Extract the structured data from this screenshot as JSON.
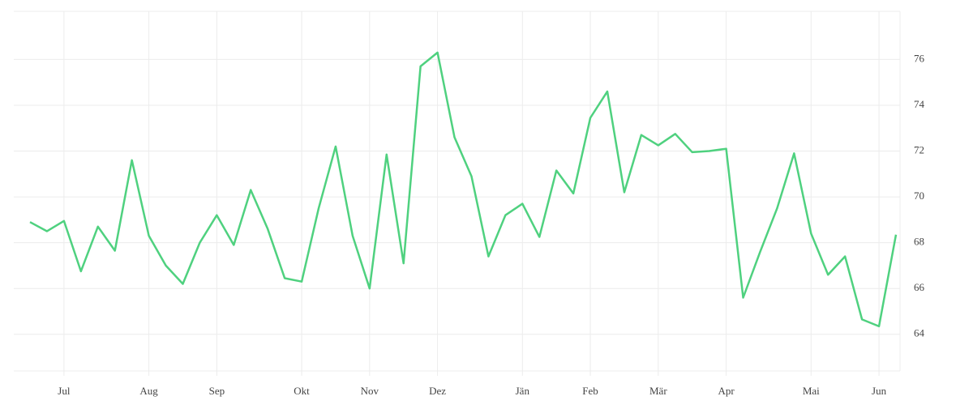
{
  "chart_data": {
    "type": "line",
    "categories": [
      null,
      null,
      "Jul",
      null,
      null,
      null,
      null,
      "Aug",
      null,
      null,
      null,
      "Sep",
      null,
      null,
      null,
      null,
      "Okt",
      null,
      null,
      null,
      "Nov",
      null,
      null,
      null,
      "Dez",
      null,
      null,
      null,
      null,
      "Jän",
      null,
      null,
      null,
      "Feb",
      null,
      null,
      null,
      "Mär",
      null,
      null,
      null,
      "Apr",
      null,
      null,
      null,
      null,
      "Mai",
      null,
      null,
      null,
      "Jun",
      null
    ],
    "series": [
      {
        "color": "#4fd17f",
        "values": [
          68.9,
          68.5,
          68.95,
          66.75,
          68.7,
          67.65,
          71.6,
          68.3,
          67.0,
          66.2,
          68.0,
          69.2,
          67.9,
          70.3,
          68.6,
          66.45,
          66.3,
          69.5,
          72.2,
          68.3,
          66.0,
          71.85,
          67.1,
          75.7,
          76.3,
          72.6,
          70.9,
          67.4,
          69.2,
          69.7,
          68.25,
          71.15,
          70.15,
          73.45,
          74.6,
          70.2,
          72.7,
          72.25,
          72.75,
          71.95,
          72.0,
          72.1,
          65.6,
          67.6,
          69.5,
          71.9,
          68.4,
          66.6,
          67.4,
          64.65,
          64.35,
          68.35
        ]
      }
    ],
    "ylim": [
      62.4,
      78.1
    ],
    "yticks": [
      64,
      66,
      68,
      70,
      72,
      74,
      76
    ],
    "grid": true,
    "y_axis_side": "right"
  }
}
